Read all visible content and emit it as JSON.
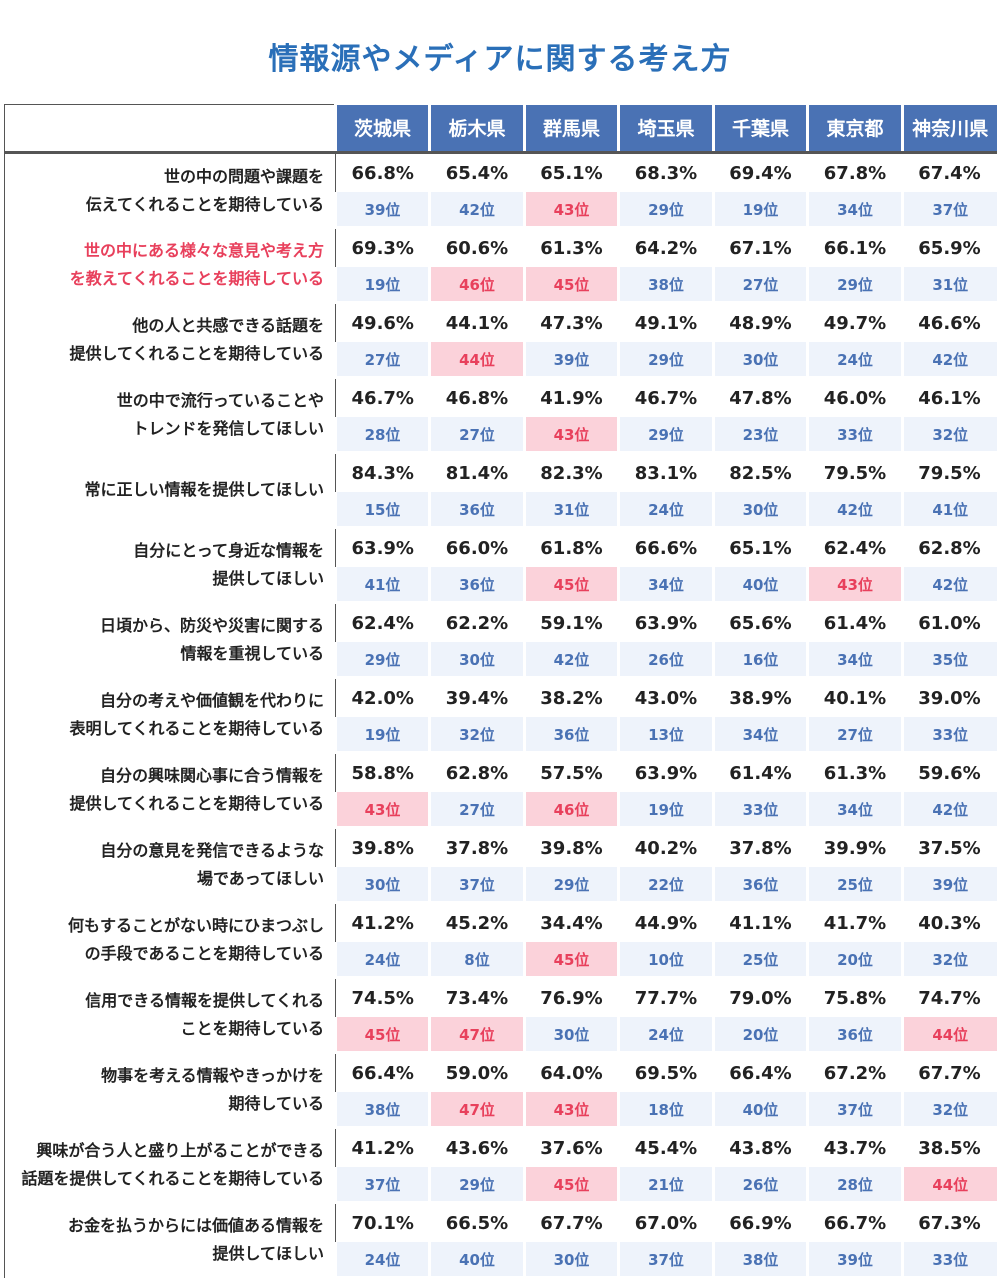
{
  "title": "情報源やメディアに関する考え方",
  "chart_data": {
    "type": "table",
    "columns": [
      "茨城県",
      "栃木県",
      "群馬県",
      "埼玉県",
      "千葉県",
      "東京都",
      "神奈川県"
    ],
    "rows": [
      {
        "label": "世の中の問題や課題を\n伝えてくれることを期待している",
        "highlight": false,
        "values": [
          "66.8%",
          "65.4%",
          "65.1%",
          "68.3%",
          "69.4%",
          "67.8%",
          "67.4%"
        ],
        "ranks": [
          "39位",
          "42位",
          "43位",
          "29位",
          "19位",
          "34位",
          "37位"
        ]
      },
      {
        "label": "世の中にある様々な意見や考え方\nを教えてくれることを期待している",
        "highlight": true,
        "values": [
          "69.3%",
          "60.6%",
          "61.3%",
          "64.2%",
          "67.1%",
          "66.1%",
          "65.9%"
        ],
        "ranks": [
          "19位",
          "46位",
          "45位",
          "38位",
          "27位",
          "29位",
          "31位"
        ]
      },
      {
        "label": "他の人と共感できる話題を\n提供してくれることを期待している",
        "highlight": false,
        "values": [
          "49.6%",
          "44.1%",
          "47.3%",
          "49.1%",
          "48.9%",
          "49.7%",
          "46.6%"
        ],
        "ranks": [
          "27位",
          "44位",
          "39位",
          "29位",
          "30位",
          "24位",
          "42位"
        ]
      },
      {
        "label": "世の中で流行っていることや\nトレンドを発信してほしい",
        "highlight": false,
        "values": [
          "46.7%",
          "46.8%",
          "41.9%",
          "46.7%",
          "47.8%",
          "46.0%",
          "46.1%"
        ],
        "ranks": [
          "28位",
          "27位",
          "43位",
          "29位",
          "23位",
          "33位",
          "32位"
        ]
      },
      {
        "label": "常に正しい情報を提供してほしい",
        "highlight": false,
        "values": [
          "84.3%",
          "81.4%",
          "82.3%",
          "83.1%",
          "82.5%",
          "79.5%",
          "79.5%"
        ],
        "ranks": [
          "15位",
          "36位",
          "31位",
          "24位",
          "30位",
          "42位",
          "41位"
        ]
      },
      {
        "label": "自分にとって身近な情報を\n提供してほしい",
        "highlight": false,
        "values": [
          "63.9%",
          "66.0%",
          "61.8%",
          "66.6%",
          "65.1%",
          "62.4%",
          "62.8%"
        ],
        "ranks": [
          "41位",
          "36位",
          "45位",
          "34位",
          "40位",
          "43位",
          "42位"
        ]
      },
      {
        "label": "日頃から、防災や災害に関する\n情報を重視している",
        "highlight": false,
        "values": [
          "62.4%",
          "62.2%",
          "59.1%",
          "63.9%",
          "65.6%",
          "61.4%",
          "61.0%"
        ],
        "ranks": [
          "29位",
          "30位",
          "42位",
          "26位",
          "16位",
          "34位",
          "35位"
        ]
      },
      {
        "label": "自分の考えや価値観を代わりに\n表明してくれることを期待している",
        "highlight": false,
        "values": [
          "42.0%",
          "39.4%",
          "38.2%",
          "43.0%",
          "38.9%",
          "40.1%",
          "39.0%"
        ],
        "ranks": [
          "19位",
          "32位",
          "36位",
          "13位",
          "34位",
          "27位",
          "33位"
        ]
      },
      {
        "label": "自分の興味関心事に合う情報を\n提供してくれることを期待している",
        "highlight": false,
        "values": [
          "58.8%",
          "62.8%",
          "57.5%",
          "63.9%",
          "61.4%",
          "61.3%",
          "59.6%"
        ],
        "ranks": [
          "43位",
          "27位",
          "46位",
          "19位",
          "33位",
          "34位",
          "42位"
        ]
      },
      {
        "label": "自分の意見を発信できるような\n場であってほしい",
        "highlight": false,
        "values": [
          "39.8%",
          "37.8%",
          "39.8%",
          "40.2%",
          "37.8%",
          "39.9%",
          "37.5%"
        ],
        "ranks": [
          "30位",
          "37位",
          "29位",
          "22位",
          "36位",
          "25位",
          "39位"
        ]
      },
      {
        "label": "何もすることがない時にひまつぶし\nの手段であることを期待している",
        "highlight": false,
        "values": [
          "41.2%",
          "45.2%",
          "34.4%",
          "44.9%",
          "41.1%",
          "41.7%",
          "40.3%"
        ],
        "ranks": [
          "24位",
          "8位",
          "45位",
          "10位",
          "25位",
          "20位",
          "32位"
        ]
      },
      {
        "label": "信用できる情報を提供してくれる\nことを期待している",
        "highlight": false,
        "values": [
          "74.5%",
          "73.4%",
          "76.9%",
          "77.7%",
          "79.0%",
          "75.8%",
          "74.7%"
        ],
        "ranks": [
          "45位",
          "47位",
          "30位",
          "24位",
          "20位",
          "36位",
          "44位"
        ]
      },
      {
        "label": "物事を考える情報やきっかけを\n期待している",
        "highlight": false,
        "values": [
          "66.4%",
          "59.0%",
          "64.0%",
          "69.5%",
          "66.4%",
          "67.2%",
          "67.7%"
        ],
        "ranks": [
          "38位",
          "47位",
          "43位",
          "18位",
          "40位",
          "37位",
          "32位"
        ]
      },
      {
        "label": "興味が合う人と盛り上がることができる\n話題を提供してくれることを期待している",
        "highlight": false,
        "values": [
          "41.2%",
          "43.6%",
          "37.6%",
          "45.4%",
          "43.8%",
          "43.7%",
          "38.5%"
        ],
        "ranks": [
          "37位",
          "29位",
          "45位",
          "21位",
          "26位",
          "28位",
          "44位"
        ]
      },
      {
        "label": "お金を払うからには価値ある情報を\n提供してほしい",
        "highlight": false,
        "values": [
          "70.1%",
          "66.5%",
          "67.7%",
          "67.0%",
          "66.9%",
          "66.7%",
          "67.3%"
        ],
        "ranks": [
          "24位",
          "40位",
          "30位",
          "37位",
          "38位",
          "39位",
          "33位"
        ]
      }
    ],
    "highlight_rule": "rank >= 43 shown with pink background",
    "colors": {
      "header": "#4a72b4",
      "rank_text": "#4a72b4",
      "low_rank_bg": "#fbd2da",
      "low_rank_text": "#e8405c",
      "highlight_label": "#e8405c",
      "title": "#2a6fb8"
    }
  }
}
